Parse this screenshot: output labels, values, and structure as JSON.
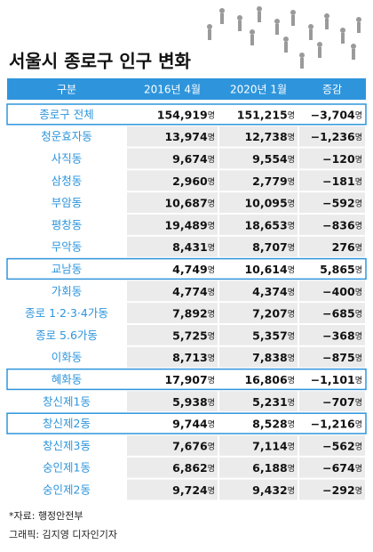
{
  "title": "서울시 종로구 인구 변화",
  "table": {
    "header": [
      "구분",
      "2016년 4월",
      "2020년 1월",
      "증감"
    ],
    "unit": "명",
    "highlight": [
      0,
      7,
      12,
      14
    ],
    "rows": [
      [
        "종로구 전체",
        "154,919",
        "151,215",
        "−3,704"
      ],
      [
        "청운효자동",
        "13,974",
        "12,738",
        "−1,236"
      ],
      [
        "사직동",
        "9,674",
        "9,554",
        "−120"
      ],
      [
        "삼청동",
        "2,960",
        "2,779",
        "−181"
      ],
      [
        "부암동",
        "10,687",
        "10,095",
        "−592"
      ],
      [
        "평창동",
        "19,489",
        "18,653",
        "−836"
      ],
      [
        "무악동",
        "8,431",
        "8,707",
        "276"
      ],
      [
        "교남동",
        "4,749",
        "10,614",
        "5,865"
      ],
      [
        "가회동",
        "4,774",
        "4,374",
        "−400"
      ],
      [
        "종로 1·2·3·4가동",
        "7,892",
        "7,207",
        "−685"
      ],
      [
        "종로 5.6가동",
        "5,725",
        "5,357",
        "−368"
      ],
      [
        "이화동",
        "8,713",
        "7,838",
        "−875"
      ],
      [
        "혜화동",
        "17,907",
        "16,806",
        "−1,101"
      ],
      [
        "창신제1동",
        "5,938",
        "5,231",
        "−707"
      ],
      [
        "창신제2동",
        "9,744",
        "8,528",
        "−1,216"
      ],
      [
        "창신제3동",
        "7,676",
        "7,114",
        "−562"
      ],
      [
        "숭인제1동",
        "6,862",
        "6,188",
        "−674"
      ],
      [
        "숭인제2동",
        "9,724",
        "9,432",
        "−292"
      ]
    ]
  },
  "footer": {
    "source": "*자료: 행정안전부",
    "credit": "그래픽: 김지영 디자인기자"
  }
}
